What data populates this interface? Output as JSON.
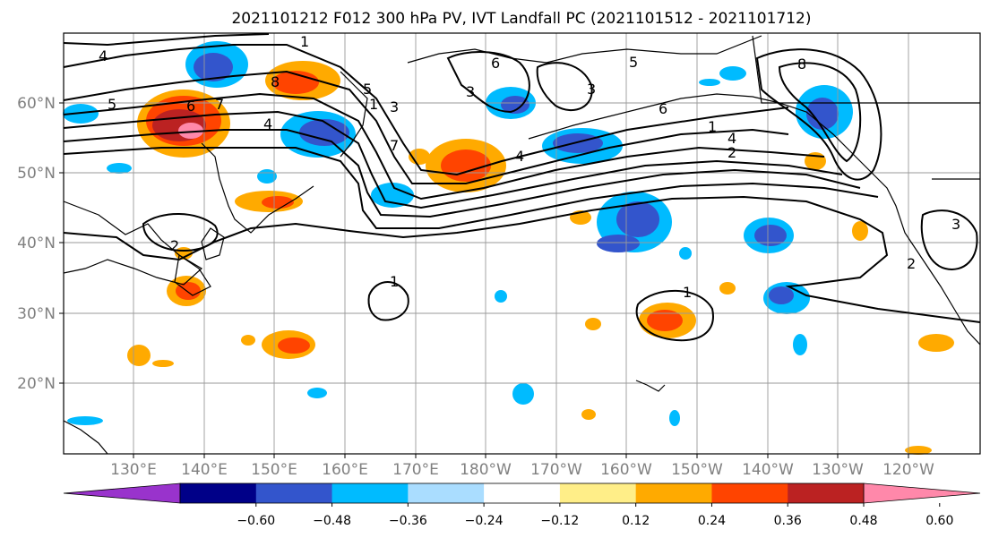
{
  "title": "2021101212 F012 300 hPa PV, IVT Landfall PC (2021101512 - 2021101712)",
  "lat_labels": [
    "60°N",
    "50°N",
    "40°N",
    "30°N",
    "20°N"
  ],
  "lon_labels": [
    "130°E",
    "140°E",
    "150°E",
    "160°E",
    "170°E",
    "180°W",
    "170°W",
    "160°W",
    "150°W",
    "140°W",
    "130°W",
    "120°W"
  ],
  "colorbar": {
    "colors": [
      "#9933cc",
      "#000088",
      "#3355cc",
      "#00bbff",
      "#aaddff",
      "#ffffff",
      "#ffee88",
      "#ffaa00",
      "#ff4400",
      "#bb2222",
      "#ff88aa"
    ],
    "tick_labels": [
      "-0.60",
      "-0.48",
      "-0.36",
      "-0.24",
      "-0.12",
      "0.12",
      "0.24",
      "0.36",
      "0.48",
      "0.60"
    ]
  },
  "contour_labels": [
    "4",
    "1",
    "5",
    "6",
    "7",
    "4",
    "8",
    "5",
    "1",
    "3",
    "6",
    "3",
    "4",
    "5",
    "4",
    "2",
    "7",
    "3",
    "6",
    "8",
    "1",
    "2",
    "2",
    "3",
    "1",
    "1"
  ]
}
